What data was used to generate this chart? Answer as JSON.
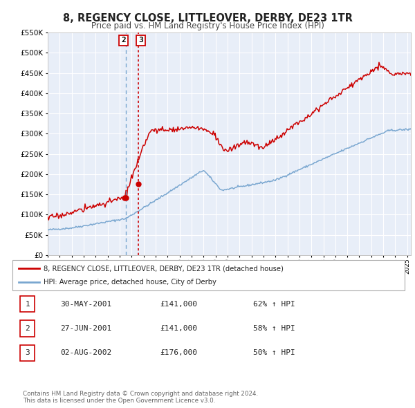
{
  "title": "8, REGENCY CLOSE, LITTLEOVER, DERBY, DE23 1TR",
  "subtitle": "Price paid vs. HM Land Registry's House Price Index (HPI)",
  "legend_line1": "8, REGENCY CLOSE, LITTLEOVER, DERBY, DE23 1TR (detached house)",
  "legend_line2": "HPI: Average price, detached house, City of Derby",
  "red_color": "#cc0000",
  "blue_color": "#7aa7d0",
  "bg_color": "#e8eef8",
  "grid_color": "#ffffff",
  "sale_prices": [
    141000,
    141000,
    176000
  ],
  "sale_year_nums": [
    2001.414,
    2001.497,
    2002.586
  ],
  "table_rows": [
    [
      "1",
      "30-MAY-2001",
      "£141,000",
      "62% ↑ HPI"
    ],
    [
      "2",
      "27-JUN-2001",
      "£141,000",
      "58% ↑ HPI"
    ],
    [
      "3",
      "02-AUG-2002",
      "£176,000",
      "50% ↑ HPI"
    ]
  ],
  "footnote1": "Contains HM Land Registry data © Crown copyright and database right 2024.",
  "footnote2": "This data is licensed under the Open Government Licence v3.0.",
  "ylim": [
    0,
    550000
  ],
  "yticks": [
    0,
    50000,
    100000,
    150000,
    200000,
    250000,
    300000,
    350000,
    400000,
    450000,
    500000,
    550000
  ],
  "xlim_start": 1995.0,
  "xlim_end": 2025.3,
  "vline_blue_x": 2001.497,
  "vline_red_x": 2002.586
}
